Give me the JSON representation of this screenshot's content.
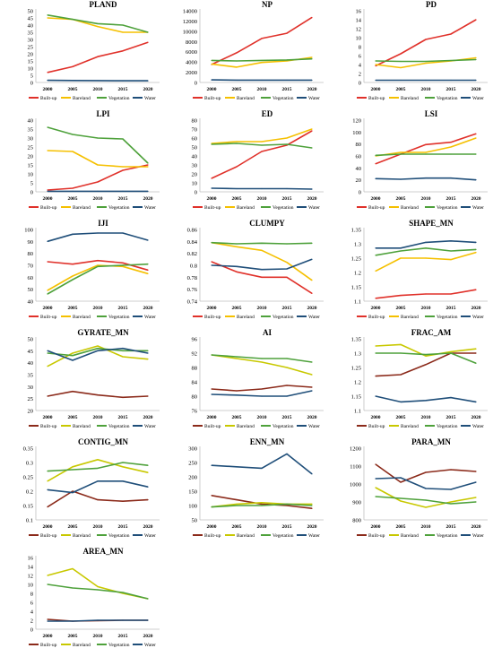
{
  "colors": {
    "Built-up": "#e0312a",
    "Bareland": "#f5c000",
    "Vegetation": "#4ea13b",
    "Water": "#1f4e79"
  },
  "chart_data": [
    {
      "type": "line",
      "title": "PLAND",
      "categories": [
        "2000",
        "2005",
        "2010",
        "2015",
        "2020"
      ],
      "ylim": [
        0,
        50
      ],
      "yticks": [
        0,
        5,
        10,
        15,
        20,
        25,
        30,
        35,
        40,
        45,
        50
      ],
      "series": [
        {
          "name": "Built-up",
          "color": "#e0312a",
          "values": [
            7,
            11,
            18,
            22,
            28
          ]
        },
        {
          "name": "Bareland",
          "color": "#f5c000",
          "values": [
            45,
            44,
            39,
            35,
            35
          ]
        },
        {
          "name": "Vegetation",
          "color": "#4ea13b",
          "values": [
            47,
            44,
            41,
            40,
            35
          ]
        },
        {
          "name": "Water",
          "color": "#1f4e79",
          "values": [
            1.5,
            1.4,
            1.3,
            1.2,
            1.2
          ]
        }
      ]
    },
    {
      "type": "line",
      "title": "NP",
      "categories": [
        "2000",
        "2005",
        "2010",
        "2015",
        "2020"
      ],
      "ylim": [
        0,
        14000
      ],
      "yticks": [
        0,
        2000,
        4000,
        6000,
        8000,
        10000,
        12000,
        14000
      ],
      "series": [
        {
          "name": "Built-up",
          "color": "#e0312a",
          "values": [
            3500,
            5800,
            8600,
            9600,
            12700
          ]
        },
        {
          "name": "Bareland",
          "color": "#f5c000",
          "values": [
            3600,
            3000,
            3900,
            4200,
            4900
          ]
        },
        {
          "name": "Vegetation",
          "color": "#4ea13b",
          "values": [
            4300,
            4200,
            4300,
            4400,
            4600
          ]
        },
        {
          "name": "Water",
          "color": "#1f4e79",
          "values": [
            500,
            450,
            450,
            450,
            450
          ]
        }
      ]
    },
    {
      "type": "line",
      "title": "PD",
      "categories": [
        "2000",
        "2005",
        "2010",
        "2015",
        "2020"
      ],
      "ylim": [
        0,
        16
      ],
      "yticks": [
        0,
        2,
        4,
        6,
        8,
        10,
        12,
        14,
        16
      ],
      "series": [
        {
          "name": "Built-up",
          "color": "#e0312a",
          "values": [
            3.7,
            6.4,
            9.6,
            10.8,
            14
          ]
        },
        {
          "name": "Bareland",
          "color": "#f5c000",
          "values": [
            4,
            3.3,
            4.3,
            4.8,
            5.5
          ]
        },
        {
          "name": "Vegetation",
          "color": "#4ea13b",
          "values": [
            4.8,
            4.7,
            4.7,
            4.9,
            5.1
          ]
        },
        {
          "name": "Water",
          "color": "#1f4e79",
          "values": [
            0.5,
            0.5,
            0.5,
            0.5,
            0.5
          ]
        }
      ]
    },
    {
      "type": "line",
      "title": "LPI",
      "categories": [
        "2000",
        "2005",
        "2010",
        "2015",
        "2020"
      ],
      "ylim": [
        0,
        40
      ],
      "yticks": [
        0,
        5,
        10,
        15,
        20,
        25,
        30,
        35,
        40
      ],
      "series": [
        {
          "name": "Built-up",
          "color": "#e0312a",
          "values": [
            1,
            2,
            5.5,
            12,
            15
          ]
        },
        {
          "name": "Bareland",
          "color": "#f5c000",
          "values": [
            23,
            22.5,
            15,
            14,
            14
          ]
        },
        {
          "name": "Vegetation",
          "color": "#4ea13b",
          "values": [
            36,
            32,
            30,
            29.5,
            16
          ]
        },
        {
          "name": "Water",
          "color": "#1f4e79",
          "values": [
            0.3,
            0.3,
            0.3,
            0.3,
            0.3
          ]
        }
      ]
    },
    {
      "type": "line",
      "title": "ED",
      "categories": [
        "2000",
        "2005",
        "2010",
        "2015",
        "2020"
      ],
      "ylim": [
        0,
        80
      ],
      "yticks": [
        0,
        10,
        20,
        30,
        40,
        50,
        60,
        70,
        80
      ],
      "series": [
        {
          "name": "Built-up",
          "color": "#e0312a",
          "values": [
            15,
            28,
            45,
            52,
            68
          ]
        },
        {
          "name": "Bareland",
          "color": "#f5c000",
          "values": [
            54,
            56,
            56,
            60,
            70
          ]
        },
        {
          "name": "Vegetation",
          "color": "#4ea13b",
          "values": [
            53,
            54,
            52,
            53,
            49
          ]
        },
        {
          "name": "Water",
          "color": "#1f4e79",
          "values": [
            4,
            3.5,
            3.5,
            3.5,
            3
          ]
        }
      ]
    },
    {
      "type": "line",
      "title": "LSI",
      "categories": [
        "2000",
        "2005",
        "2010",
        "2015",
        "2020"
      ],
      "ylim": [
        0,
        120
      ],
      "yticks": [
        0,
        20,
        40,
        60,
        80,
        100,
        120
      ],
      "series": [
        {
          "name": "Built-up",
          "color": "#e0312a",
          "values": [
            47,
            63,
            79,
            83,
            97
          ]
        },
        {
          "name": "Bareland",
          "color": "#f5c000",
          "values": [
            60,
            66,
            66,
            75,
            90
          ]
        },
        {
          "name": "Vegetation",
          "color": "#4ea13b",
          "values": [
            61,
            63,
            63,
            63,
            63
          ]
        },
        {
          "name": "Water",
          "color": "#1f4e79",
          "values": [
            22,
            21,
            23,
            23,
            20
          ]
        }
      ]
    },
    {
      "type": "line",
      "title": "IJI",
      "categories": [
        "2000",
        "2005",
        "2010",
        "2015",
        "2020"
      ],
      "ylim": [
        40,
        100
      ],
      "yticks": [
        40,
        50,
        60,
        70,
        80,
        90,
        100
      ],
      "series": [
        {
          "name": "Built-up",
          "color": "#e0312a",
          "values": [
            73,
            71,
            74,
            72,
            66
          ]
        },
        {
          "name": "Bareland",
          "color": "#f5c000",
          "values": [
            49,
            61,
            70,
            69,
            63
          ]
        },
        {
          "name": "Vegetation",
          "color": "#4ea13b",
          "values": [
            46,
            58,
            69,
            70,
            71
          ]
        },
        {
          "name": "Water",
          "color": "#1f4e79",
          "values": [
            90,
            96,
            97,
            97,
            91
          ]
        }
      ]
    },
    {
      "type": "line",
      "title": "CLUMPY",
      "categories": [
        "2000",
        "2005",
        "2010",
        "2015",
        "2020"
      ],
      "ylim": [
        0.74,
        0.86
      ],
      "yticks": [
        0.74,
        0.76,
        0.78,
        0.8,
        0.82,
        0.84,
        0.86
      ],
      "series": [
        {
          "name": "Built-up",
          "color": "#e0312a",
          "values": [
            0.806,
            0.789,
            0.78,
            0.78,
            0.753
          ]
        },
        {
          "name": "Bareland",
          "color": "#f5c000",
          "values": [
            0.838,
            0.831,
            0.825,
            0.805,
            0.775
          ]
        },
        {
          "name": "Vegetation",
          "color": "#4ea13b",
          "values": [
            0.838,
            0.836,
            0.837,
            0.836,
            0.837
          ]
        },
        {
          "name": "Water",
          "color": "#1f4e79",
          "values": [
            0.8,
            0.798,
            0.793,
            0.794,
            0.81
          ]
        }
      ]
    },
    {
      "type": "line",
      "title": "SHAPE_MN",
      "categories": [
        "2000",
        "2005",
        "2010",
        "2015",
        "2020"
      ],
      "ylim": [
        1.1,
        1.35
      ],
      "yticks": [
        1.1,
        1.15,
        1.2,
        1.25,
        1.3,
        1.35
      ],
      "series": [
        {
          "name": "Built-up",
          "color": "#e0312a",
          "values": [
            1.11,
            1.12,
            1.125,
            1.125,
            1.14
          ]
        },
        {
          "name": "Bareland",
          "color": "#f5c000",
          "values": [
            1.205,
            1.25,
            1.25,
            1.245,
            1.27
          ]
        },
        {
          "name": "Vegetation",
          "color": "#4ea13b",
          "values": [
            1.26,
            1.275,
            1.285,
            1.275,
            1.28
          ]
        },
        {
          "name": "Water",
          "color": "#1f4e79",
          "values": [
            1.285,
            1.285,
            1.305,
            1.31,
            1.305
          ]
        }
      ]
    },
    {
      "type": "line",
      "title": "GYRATE_MN",
      "categories": [
        "2000",
        "2005",
        "2010",
        "2015",
        "2020"
      ],
      "ylim": [
        20,
        50
      ],
      "yticks": [
        20,
        25,
        30,
        35,
        40,
        45,
        50
      ],
      "series": [
        {
          "name": "Built-up",
          "color": "#8b2a1a",
          "values": [
            26,
            28,
            26.5,
            25.5,
            26
          ]
        },
        {
          "name": "Bareland",
          "color": "#c8c800",
          "values": [
            38.5,
            44,
            47,
            42.5,
            41.5
          ]
        },
        {
          "name": "Vegetation",
          "color": "#4ea13b",
          "values": [
            44,
            43,
            46,
            45,
            45
          ]
        },
        {
          "name": "Water",
          "color": "#1f4e79",
          "values": [
            45,
            41,
            45,
            46,
            44
          ]
        }
      ]
    },
    {
      "type": "line",
      "title": "AI",
      "categories": [
        "2000",
        "2005",
        "2010",
        "2015",
        "2020"
      ],
      "ylim": [
        76,
        96
      ],
      "yticks": [
        76,
        80,
        84,
        88,
        92,
        96
      ],
      "series": [
        {
          "name": "Built-up",
          "color": "#8b2a1a",
          "values": [
            82,
            81.5,
            82,
            83,
            82.5
          ]
        },
        {
          "name": "Bareland",
          "color": "#c8c800",
          "values": [
            91.5,
            90.5,
            89.5,
            88,
            86
          ]
        },
        {
          "name": "Vegetation",
          "color": "#4ea13b",
          "values": [
            91.5,
            91,
            90.5,
            90.5,
            89.5
          ]
        },
        {
          "name": "Water",
          "color": "#1f4e79",
          "values": [
            80.5,
            80.3,
            80,
            80,
            81.5
          ]
        }
      ]
    },
    {
      "type": "line",
      "title": "FRAC_AM",
      "categories": [
        "2000",
        "2005",
        "2010",
        "2015",
        "2020"
      ],
      "ylim": [
        1.1,
        1.35
      ],
      "yticks": [
        1.1,
        1.15,
        1.2,
        1.25,
        1.3,
        1.35
      ],
      "series": [
        {
          "name": "Built-up",
          "color": "#8b2a1a",
          "values": [
            1.22,
            1.225,
            1.26,
            1.3,
            1.3
          ]
        },
        {
          "name": "Bareland",
          "color": "#c8c800",
          "values": [
            1.325,
            1.33,
            1.29,
            1.305,
            1.315
          ]
        },
        {
          "name": "Vegetation",
          "color": "#4ea13b",
          "values": [
            1.3,
            1.3,
            1.295,
            1.3,
            1.265
          ]
        },
        {
          "name": "Water",
          "color": "#1f4e79",
          "values": [
            1.15,
            1.13,
            1.135,
            1.145,
            1.13
          ]
        }
      ]
    },
    {
      "type": "line",
      "title": "CONTIG_MN",
      "categories": [
        "2000",
        "2005",
        "2010",
        "2015",
        "2020"
      ],
      "ylim": [
        0.1,
        0.35
      ],
      "yticks": [
        0.1,
        0.15,
        0.2,
        0.25,
        0.3,
        0.35
      ],
      "series": [
        {
          "name": "Built-up",
          "color": "#8b2a1a",
          "values": [
            0.145,
            0.2,
            0.17,
            0.165,
            0.17
          ]
        },
        {
          "name": "Bareland",
          "color": "#c8c800",
          "values": [
            0.235,
            0.285,
            0.31,
            0.285,
            0.265
          ]
        },
        {
          "name": "Vegetation",
          "color": "#4ea13b",
          "values": [
            0.27,
            0.275,
            0.28,
            0.3,
            0.29
          ]
        },
        {
          "name": "Water",
          "color": "#1f4e79",
          "values": [
            0.205,
            0.195,
            0.235,
            0.235,
            0.215
          ]
        }
      ]
    },
    {
      "type": "line",
      "title": "ENN_MN",
      "categories": [
        "2000",
        "2005",
        "2010",
        "2015",
        "2020"
      ],
      "ylim": [
        50,
        300
      ],
      "yticks": [
        50,
        100,
        150,
        200,
        250,
        300
      ],
      "series": [
        {
          "name": "Built-up",
          "color": "#8b2a1a",
          "values": [
            135,
            120,
            105,
            100,
            90
          ]
        },
        {
          "name": "Bareland",
          "color": "#c8c800",
          "values": [
            95,
            105,
            110,
            105,
            105
          ]
        },
        {
          "name": "Vegetation",
          "color": "#4ea13b",
          "values": [
            95,
            100,
            100,
            105,
            100
          ]
        },
        {
          "name": "Water",
          "color": "#1f4e79",
          "values": [
            240,
            235,
            230,
            280,
            210
          ]
        }
      ]
    },
    {
      "type": "line",
      "title": "PARA_MN",
      "categories": [
        "2000",
        "2005",
        "2010",
        "2015",
        "2020"
      ],
      "ylim": [
        800,
        1200
      ],
      "yticks": [
        800,
        900,
        1000,
        1100,
        1200
      ],
      "series": [
        {
          "name": "Built-up",
          "color": "#8b2a1a",
          "values": [
            1110,
            1010,
            1065,
            1080,
            1070
          ]
        },
        {
          "name": "Bareland",
          "color": "#c8c800",
          "values": [
            980,
            905,
            870,
            900,
            925
          ]
        },
        {
          "name": "Vegetation",
          "color": "#4ea13b",
          "values": [
            930,
            920,
            910,
            890,
            900
          ]
        },
        {
          "name": "Water",
          "color": "#1f4e79",
          "values": [
            1030,
            1035,
            975,
            970,
            1010
          ]
        }
      ]
    },
    {
      "type": "line",
      "title": "AREA_MN",
      "categories": [
        "2000",
        "2005",
        "2010",
        "2015",
        "2020"
      ],
      "ylim": [
        0,
        16
      ],
      "yticks": [
        0,
        2,
        4,
        6,
        8,
        10,
        12,
        14,
        16
      ],
      "series": [
        {
          "name": "Built-up",
          "color": "#8b2a1a",
          "values": [
            2.2,
            1.8,
            1.9,
            2,
            2
          ]
        },
        {
          "name": "Bareland",
          "color": "#c8c800",
          "values": [
            12,
            13.5,
            9.5,
            8,
            6.8
          ]
        },
        {
          "name": "Vegetation",
          "color": "#4ea13b",
          "values": [
            10,
            9.2,
            8.8,
            8.2,
            6.8
          ]
        },
        {
          "name": "Water",
          "color": "#1f4e79",
          "values": [
            1.8,
            1.8,
            2,
            2,
            2
          ]
        }
      ]
    }
  ]
}
